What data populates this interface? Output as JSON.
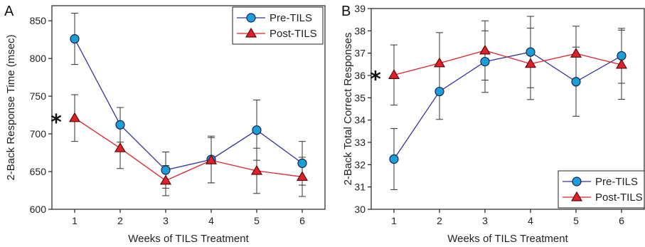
{
  "colors": {
    "pre": "#1a9fd6",
    "post": "#e0202a",
    "pre_line": "#33339a",
    "post_line": "#e0202a"
  },
  "chart_data": [
    {
      "panel": "A",
      "type": "line",
      "xlabel": "Weeks of TILS Treatment",
      "ylabel": "2-Back Response Time (msec)",
      "x": [
        1,
        2,
        3,
        4,
        5,
        6
      ],
      "xlim": [
        0.5,
        6.5
      ],
      "ylim": [
        600,
        870
      ],
      "yticks": [
        600,
        650,
        700,
        750,
        800,
        850
      ],
      "grid": false,
      "legend_position": "top-right",
      "annotations": [
        {
          "text": "*",
          "x": 1,
          "series": "Post-TILS"
        }
      ],
      "series": [
        {
          "name": "Pre-TILS",
          "marker": "circle",
          "values": [
            826,
            712,
            652,
            666,
            705,
            661
          ],
          "error": [
            34,
            23,
            24,
            31,
            40,
            29
          ]
        },
        {
          "name": "Post-TILS",
          "marker": "triangle",
          "values": [
            721,
            681,
            638,
            665,
            651,
            643
          ],
          "error": [
            31,
            27,
            20,
            30,
            30,
            26
          ]
        }
      ]
    },
    {
      "panel": "B",
      "type": "line",
      "xlabel": "Weeks of TILS Treatment",
      "ylabel": "2-Back Total Correct Responses",
      "x": [
        1,
        2,
        3,
        4,
        5,
        6
      ],
      "xlim": [
        0.5,
        6.5
      ],
      "ylim": [
        30,
        39
      ],
      "yticks": [
        30,
        31,
        32,
        33,
        34,
        35,
        36,
        37,
        38,
        39
      ],
      "grid": false,
      "legend_position": "bottom-right",
      "annotations": [
        {
          "text": "*",
          "x": 1,
          "series": "Post-TILS"
        }
      ],
      "series": [
        {
          "name": "Pre-TILS",
          "marker": "circle",
          "values": [
            32.25,
            35.28,
            36.62,
            37.05,
            35.72,
            36.88
          ],
          "error": [
            1.37,
            1.25,
            1.38,
            1.6,
            1.55,
            1.23
          ]
        },
        {
          "name": "Post-TILS",
          "marker": "triangle",
          "values": [
            36.02,
            36.55,
            37.12,
            36.52,
            36.98,
            36.48
          ],
          "error": [
            1.35,
            1.37,
            1.33,
            1.6,
            1.23,
            1.55
          ]
        }
      ]
    }
  ]
}
